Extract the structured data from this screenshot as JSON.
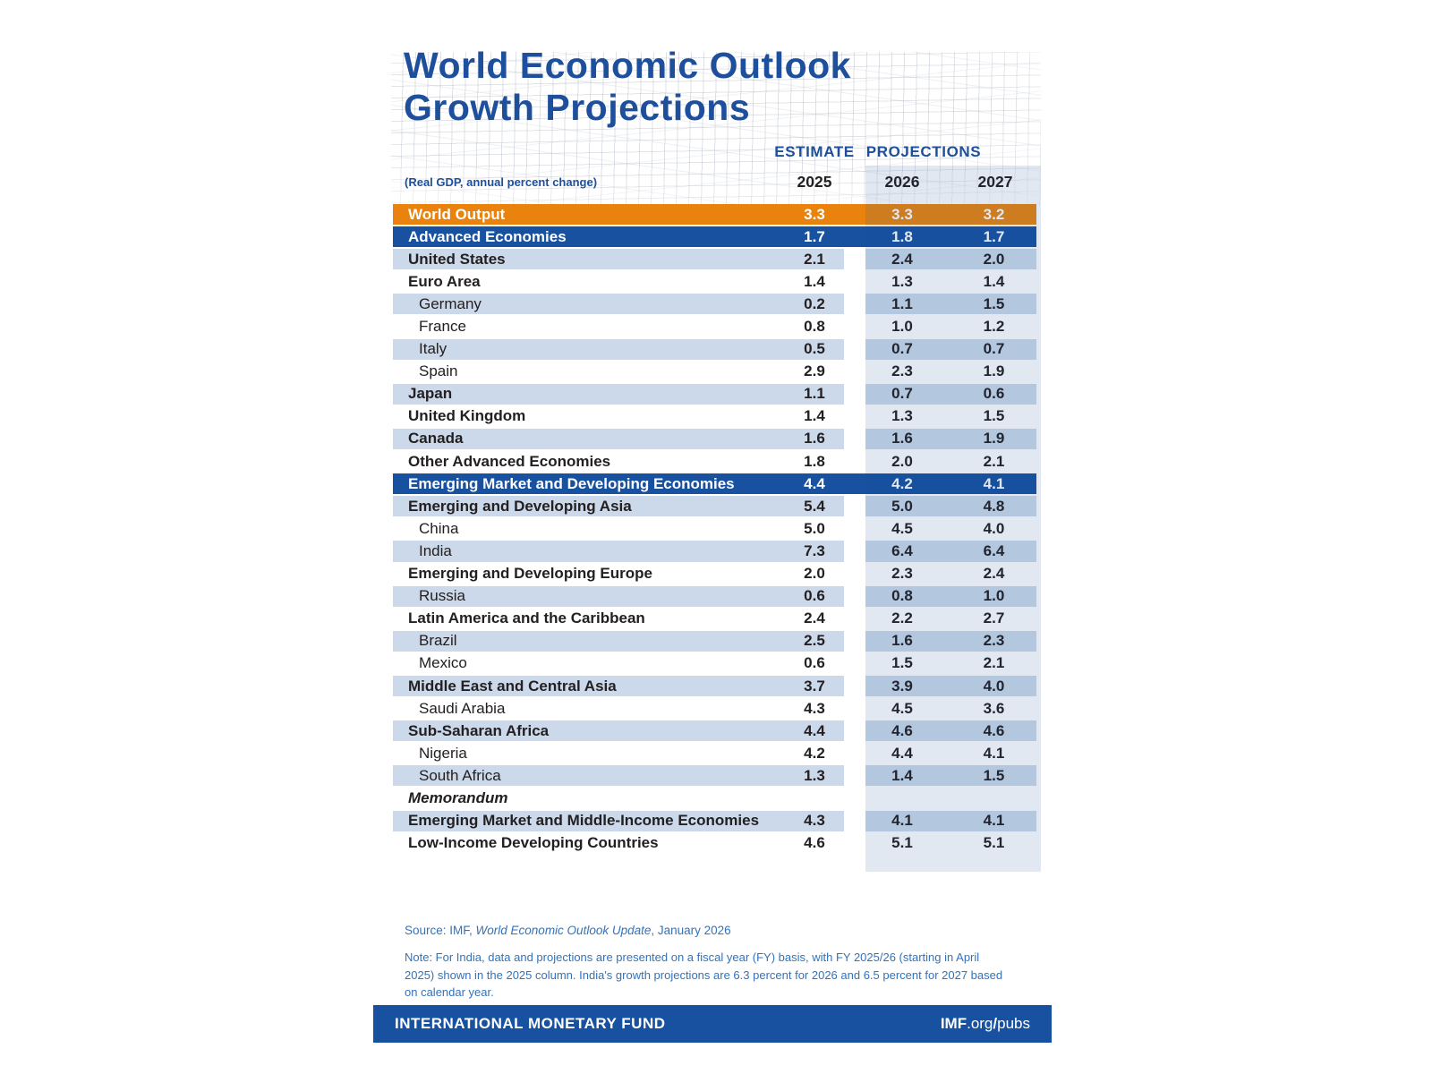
{
  "header": {
    "title_line1": "World Economic Outlook",
    "title_line2": "Growth Projections",
    "subtitle": "(Real GDP, annual percent change)",
    "estimate_label": "ESTIMATE",
    "projections_label": "PROJECTIONS"
  },
  "chart_data": {
    "type": "table",
    "title": "World Economic Outlook Growth Projections",
    "subtitle": "(Real GDP, annual percent change)",
    "column_groups": [
      "ESTIMATE",
      "PROJECTIONS"
    ],
    "columns": [
      "2025",
      "2026",
      "2027"
    ],
    "rows": [
      {
        "label": "World Output",
        "kind": "world",
        "stripe": "none",
        "values": [
          "3.3",
          "3.3",
          "3.2"
        ]
      },
      {
        "label": "Advanced Economies",
        "kind": "section",
        "stripe": "none",
        "values": [
          "1.7",
          "1.8",
          "1.7"
        ]
      },
      {
        "label": "United States",
        "kind": "group",
        "stripe": "light",
        "values": [
          "2.1",
          "2.4",
          "2.0"
        ]
      },
      {
        "label": "Euro Area",
        "kind": "group",
        "stripe": "white",
        "values": [
          "1.4",
          "1.3",
          "1.4"
        ]
      },
      {
        "label": "Germany",
        "kind": "country",
        "stripe": "light",
        "values": [
          "0.2",
          "1.1",
          "1.5"
        ]
      },
      {
        "label": "France",
        "kind": "country",
        "stripe": "white",
        "values": [
          "0.8",
          "1.0",
          "1.2"
        ]
      },
      {
        "label": "Italy",
        "kind": "country",
        "stripe": "light",
        "values": [
          "0.5",
          "0.7",
          "0.7"
        ]
      },
      {
        "label": "Spain",
        "kind": "country",
        "stripe": "white",
        "values": [
          "2.9",
          "2.3",
          "1.9"
        ]
      },
      {
        "label": "Japan",
        "kind": "group",
        "stripe": "light",
        "values": [
          "1.1",
          "0.7",
          "0.6"
        ]
      },
      {
        "label": "United Kingdom",
        "kind": "group",
        "stripe": "white",
        "values": [
          "1.4",
          "1.3",
          "1.5"
        ]
      },
      {
        "label": "Canada",
        "kind": "group",
        "stripe": "light",
        "values": [
          "1.6",
          "1.6",
          "1.9"
        ]
      },
      {
        "label": "Other Advanced Economies",
        "kind": "group",
        "stripe": "white",
        "values": [
          "1.8",
          "2.0",
          "2.1"
        ]
      },
      {
        "label": "Emerging Market and Developing Economies",
        "kind": "section",
        "stripe": "none",
        "values": [
          "4.4",
          "4.2",
          "4.1"
        ]
      },
      {
        "label": "Emerging and Developing Asia",
        "kind": "group",
        "stripe": "light",
        "values": [
          "5.4",
          "5.0",
          "4.8"
        ]
      },
      {
        "label": "China",
        "kind": "country",
        "stripe": "white",
        "values": [
          "5.0",
          "4.5",
          "4.0"
        ]
      },
      {
        "label": "India",
        "kind": "country",
        "stripe": "light",
        "values": [
          "7.3",
          "6.4",
          "6.4"
        ]
      },
      {
        "label": "Emerging and Developing Europe",
        "kind": "group",
        "stripe": "white",
        "values": [
          "2.0",
          "2.3",
          "2.4"
        ]
      },
      {
        "label": "Russia",
        "kind": "country",
        "stripe": "light",
        "values": [
          "0.6",
          "0.8",
          "1.0"
        ]
      },
      {
        "label": "Latin America and the Caribbean",
        "kind": "group",
        "stripe": "white",
        "values": [
          "2.4",
          "2.2",
          "2.7"
        ]
      },
      {
        "label": "Brazil",
        "kind": "country",
        "stripe": "light",
        "values": [
          "2.5",
          "1.6",
          "2.3"
        ]
      },
      {
        "label": "Mexico",
        "kind": "country",
        "stripe": "white",
        "values": [
          "0.6",
          "1.5",
          "2.1"
        ]
      },
      {
        "label": "Middle East and Central Asia",
        "kind": "group",
        "stripe": "light",
        "values": [
          "3.7",
          "3.9",
          "4.0"
        ]
      },
      {
        "label": "Saudi Arabia",
        "kind": "country",
        "stripe": "white",
        "values": [
          "4.3",
          "4.5",
          "3.6"
        ]
      },
      {
        "label": "Sub-Saharan Africa",
        "kind": "group",
        "stripe": "light",
        "values": [
          "4.4",
          "4.6",
          "4.6"
        ]
      },
      {
        "label": "Nigeria",
        "kind": "country",
        "stripe": "white",
        "values": [
          "4.2",
          "4.4",
          "4.1"
        ]
      },
      {
        "label": "South Africa",
        "kind": "country",
        "stripe": "light",
        "values": [
          "1.3",
          "1.4",
          "1.5"
        ]
      },
      {
        "label": "Memorandum",
        "kind": "memo",
        "stripe": "white",
        "values": []
      },
      {
        "label": "Emerging Market and Middle-Income Economies",
        "kind": "group",
        "stripe": "light",
        "values": [
          "4.3",
          "4.1",
          "4.1"
        ]
      },
      {
        "label": "Low-Income Developing Countries",
        "kind": "group",
        "stripe": "white",
        "values": [
          "4.6",
          "5.1",
          "5.1"
        ]
      }
    ]
  },
  "footer": {
    "source_prefix": "Source: IMF, ",
    "source_title": "World Economic Outlook Update",
    "source_suffix": ", January 2026",
    "note": "Note: For India, data and projections are presented on a fiscal year (FY) basis, with FY 2025/26 (starting in April 2025) shown in the 2025 column. India's growth projections are 6.3 percent for 2026 and 6.5 percent for 2027 based on calendar year.",
    "bar": {
      "org": "INTERNATIONAL MONETARY FUND",
      "url_bold": "IMF",
      "url_mid": ".org",
      "url_slash": "/",
      "url_end": "pubs"
    }
  },
  "colors": {
    "title_blue": "#1D4F9C",
    "navy_row": "#17519F",
    "orange_row": "#E9830D",
    "stripe_blue": "#CBD9EA",
    "projection_band": "rgba(27,79,158,0.13)",
    "note_blue": "#3273BC",
    "text_black": "#242021"
  }
}
